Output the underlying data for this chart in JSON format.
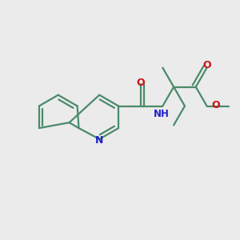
{
  "background_color": "#ebebeb",
  "bond_color": "#4a8a6a",
  "nitrogen_color": "#2020cc",
  "oxygen_color": "#cc1010",
  "line_width": 1.6,
  "figsize": [
    3.0,
    3.0
  ],
  "dpi": 100,
  "xlim": [
    -1.6,
    1.6
  ],
  "ylim": [
    -1.6,
    1.6
  ]
}
